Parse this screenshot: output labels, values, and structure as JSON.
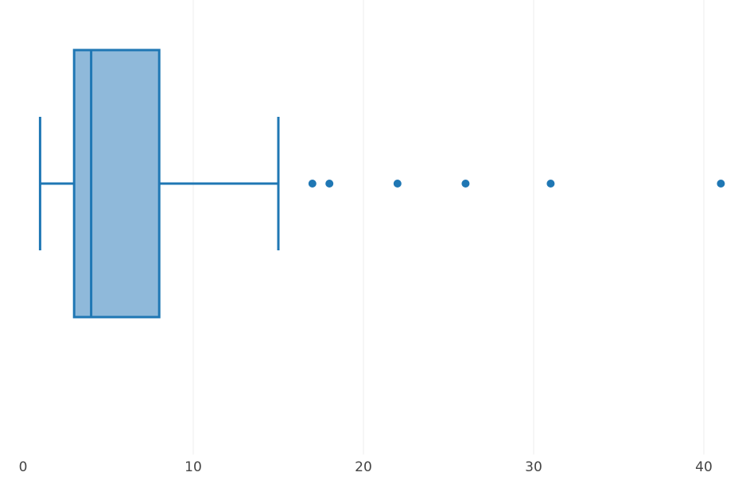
{
  "chart_data": {
    "type": "box",
    "orientation": "horizontal",
    "title": "",
    "xlabel": "",
    "ylabel": "",
    "xlim": [
      0.0,
      41.5
    ],
    "x_ticks": [
      0,
      10,
      20,
      30,
      40
    ],
    "x_tick_labels": [
      "0",
      "10",
      "20",
      "30",
      "40"
    ],
    "grid": true,
    "legend": "none",
    "series": [
      {
        "whisker_low": 1,
        "q1": 3,
        "median": 4,
        "q3": 8,
        "whisker_high": 15,
        "outliers": [
          17,
          18,
          22,
          26,
          31,
          41
        ]
      }
    ],
    "colors": {
      "box_line": "#1f77b4",
      "box_fill": "#8fb9da",
      "outlier": "#1f77b4",
      "grid": "#eeeeee",
      "tick_text": "#444444"
    }
  }
}
